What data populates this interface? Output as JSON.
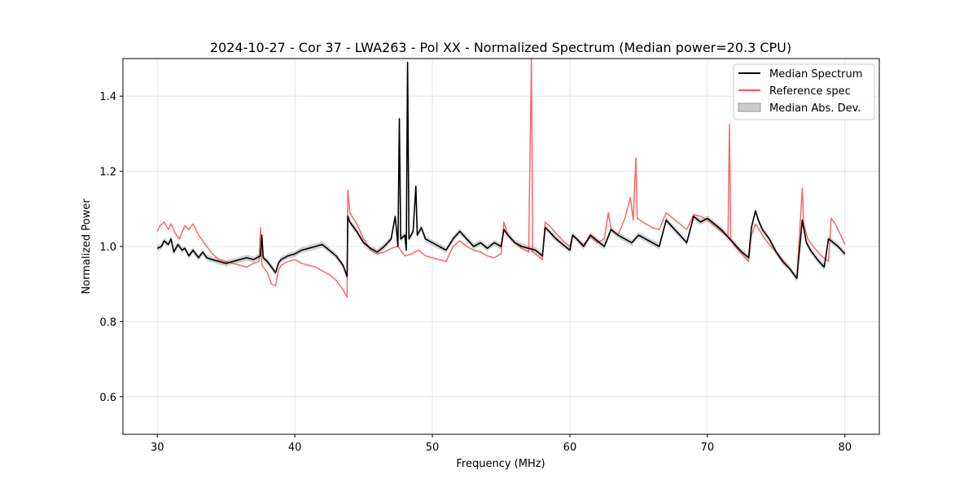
{
  "chart_data": {
    "type": "line",
    "title": "2024-10-27 - Cor 37 - LWA263 - Pol XX - Normalized Spectrum (Median power=20.3 CPU)",
    "xlabel": "Frequency (MHz)",
    "ylabel": "Normalized Power",
    "xlim": [
      27.5,
      82.5
    ],
    "ylim": [
      0.5,
      1.5
    ],
    "xticks": [
      30,
      40,
      50,
      60,
      70,
      80
    ],
    "yticks": [
      0.6,
      0.8,
      1.0,
      1.2,
      1.4
    ],
    "xtick_labels": [
      "30",
      "40",
      "50",
      "60",
      "70",
      "80"
    ],
    "ytick_labels": [
      "0.6",
      "0.8",
      "1.0",
      "1.2",
      "1.4"
    ],
    "grid": true,
    "legend_position": "top-right",
    "series": [
      {
        "name": "Median Spectrum",
        "color": "#000000",
        "points": [
          [
            30.0,
            0.995
          ],
          [
            30.3,
            1.0
          ],
          [
            30.5,
            1.015
          ],
          [
            30.8,
            1.005
          ],
          [
            31.0,
            1.02
          ],
          [
            31.2,
            0.985
          ],
          [
            31.5,
            1.005
          ],
          [
            31.8,
            0.99
          ],
          [
            32.0,
            0.995
          ],
          [
            32.3,
            0.975
          ],
          [
            32.6,
            0.99
          ],
          [
            33.0,
            0.97
          ],
          [
            33.3,
            0.985
          ],
          [
            33.6,
            0.97
          ],
          [
            34.0,
            0.965
          ],
          [
            34.5,
            0.96
          ],
          [
            35.0,
            0.955
          ],
          [
            35.5,
            0.96
          ],
          [
            36.0,
            0.965
          ],
          [
            36.5,
            0.97
          ],
          [
            37.0,
            0.965
          ],
          [
            37.5,
            0.975
          ],
          [
            37.6,
            1.03
          ],
          [
            37.7,
            0.97
          ],
          [
            38.0,
            0.96
          ],
          [
            38.3,
            0.945
          ],
          [
            38.6,
            0.93
          ],
          [
            38.8,
            0.955
          ],
          [
            39.0,
            0.965
          ],
          [
            39.5,
            0.975
          ],
          [
            40.0,
            0.98
          ],
          [
            40.5,
            0.99
          ],
          [
            41.0,
            0.995
          ],
          [
            41.5,
            1.0
          ],
          [
            42.0,
            1.005
          ],
          [
            42.5,
            0.99
          ],
          [
            43.0,
            0.975
          ],
          [
            43.5,
            0.95
          ],
          [
            43.8,
            0.92
          ],
          [
            43.85,
            1.08
          ],
          [
            44.0,
            1.065
          ],
          [
            44.5,
            1.04
          ],
          [
            45.0,
            1.01
          ],
          [
            45.5,
            0.995
          ],
          [
            46.0,
            0.985
          ],
          [
            46.5,
            1.0
          ],
          [
            47.0,
            1.02
          ],
          [
            47.3,
            1.08
          ],
          [
            47.5,
            1.0
          ],
          [
            47.6,
            1.34
          ],
          [
            47.7,
            1.02
          ],
          [
            48.0,
            1.03
          ],
          [
            48.1,
            0.99
          ],
          [
            48.2,
            1.49
          ],
          [
            48.3,
            1.02
          ],
          [
            48.6,
            1.04
          ],
          [
            48.8,
            1.16
          ],
          [
            48.9,
            1.03
          ],
          [
            49.2,
            1.05
          ],
          [
            49.5,
            1.02
          ],
          [
            50.0,
            1.01
          ],
          [
            50.5,
            1.0
          ],
          [
            51.0,
            0.99
          ],
          [
            51.5,
            1.02
          ],
          [
            52.0,
            1.04
          ],
          [
            52.5,
            1.02
          ],
          [
            53.0,
            1.0
          ],
          [
            53.5,
            1.01
          ],
          [
            54.0,
            0.995
          ],
          [
            54.5,
            1.01
          ],
          [
            55.0,
            1.0
          ],
          [
            55.2,
            1.045
          ],
          [
            55.5,
            1.03
          ],
          [
            56.0,
            1.01
          ],
          [
            56.5,
            1.0
          ],
          [
            57.0,
            0.995
          ],
          [
            57.5,
            0.99
          ],
          [
            58.0,
            0.975
          ],
          [
            58.2,
            1.05
          ],
          [
            58.5,
            1.04
          ],
          [
            59.0,
            1.02
          ],
          [
            59.5,
            1.005
          ],
          [
            60.0,
            0.99
          ],
          [
            60.2,
            1.03
          ],
          [
            60.5,
            1.02
          ],
          [
            61.0,
            1.0
          ],
          [
            61.5,
            1.03
          ],
          [
            62.0,
            1.015
          ],
          [
            62.5,
            1.0
          ],
          [
            63.0,
            1.045
          ],
          [
            63.5,
            1.03
          ],
          [
            64.0,
            1.02
          ],
          [
            64.5,
            1.01
          ],
          [
            65.0,
            1.03
          ],
          [
            65.5,
            1.02
          ],
          [
            66.0,
            1.01
          ],
          [
            66.5,
            1.0
          ],
          [
            67.0,
            1.07
          ],
          [
            67.5,
            1.05
          ],
          [
            68.0,
            1.03
          ],
          [
            68.5,
            1.01
          ],
          [
            69.0,
            1.08
          ],
          [
            69.5,
            1.065
          ],
          [
            70.0,
            1.075
          ],
          [
            70.5,
            1.06
          ],
          [
            71.0,
            1.045
          ],
          [
            71.5,
            1.025
          ],
          [
            72.0,
            1.005
          ],
          [
            72.5,
            0.985
          ],
          [
            73.0,
            0.97
          ],
          [
            73.2,
            1.05
          ],
          [
            73.5,
            1.095
          ],
          [
            73.7,
            1.07
          ],
          [
            74.0,
            1.045
          ],
          [
            74.5,
            1.02
          ],
          [
            75.0,
            0.985
          ],
          [
            75.5,
            0.96
          ],
          [
            76.0,
            0.94
          ],
          [
            76.5,
            0.915
          ],
          [
            76.9,
            1.07
          ],
          [
            77.2,
            1.01
          ],
          [
            77.5,
            0.99
          ],
          [
            78.0,
            0.965
          ],
          [
            78.5,
            0.945
          ],
          [
            78.8,
            1.02
          ],
          [
            79.0,
            1.015
          ],
          [
            79.5,
            1.0
          ],
          [
            80.0,
            0.98
          ]
        ]
      },
      {
        "name": "Reference spec",
        "color": "#ff5555",
        "points": [
          [
            30.0,
            1.04
          ],
          [
            30.2,
            1.055
          ],
          [
            30.5,
            1.065
          ],
          [
            30.8,
            1.045
          ],
          [
            31.0,
            1.06
          ],
          [
            31.3,
            1.035
          ],
          [
            31.6,
            1.02
          ],
          [
            32.0,
            1.055
          ],
          [
            32.3,
            1.045
          ],
          [
            32.6,
            1.06
          ],
          [
            33.0,
            1.03
          ],
          [
            33.5,
            1.005
          ],
          [
            34.0,
            0.98
          ],
          [
            34.5,
            0.965
          ],
          [
            35.0,
            0.96
          ],
          [
            35.5,
            0.955
          ],
          [
            36.0,
            0.95
          ],
          [
            36.5,
            0.945
          ],
          [
            37.0,
            0.955
          ],
          [
            37.4,
            0.96
          ],
          [
            37.5,
            1.05
          ],
          [
            37.6,
            0.95
          ],
          [
            38.0,
            0.93
          ],
          [
            38.3,
            0.9
          ],
          [
            38.6,
            0.895
          ],
          [
            38.8,
            0.935
          ],
          [
            39.0,
            0.95
          ],
          [
            39.5,
            0.96
          ],
          [
            40.0,
            0.965
          ],
          [
            40.5,
            0.955
          ],
          [
            41.0,
            0.95
          ],
          [
            41.5,
            0.945
          ],
          [
            42.0,
            0.935
          ],
          [
            42.5,
            0.925
          ],
          [
            43.0,
            0.91
          ],
          [
            43.5,
            0.885
          ],
          [
            43.8,
            0.865
          ],
          [
            43.85,
            1.15
          ],
          [
            44.0,
            1.09
          ],
          [
            44.5,
            1.06
          ],
          [
            45.0,
            1.02
          ],
          [
            45.5,
            0.99
          ],
          [
            46.0,
            0.98
          ],
          [
            46.5,
            0.985
          ],
          [
            47.0,
            0.995
          ],
          [
            47.5,
            1.0
          ],
          [
            47.8,
            0.985
          ],
          [
            48.0,
            0.975
          ],
          [
            48.5,
            0.98
          ],
          [
            49.0,
            0.99
          ],
          [
            49.5,
            0.975
          ],
          [
            50.0,
            0.97
          ],
          [
            50.5,
            0.965
          ],
          [
            51.0,
            0.96
          ],
          [
            51.5,
            1.0
          ],
          [
            52.0,
            1.015
          ],
          [
            52.5,
            1.0
          ],
          [
            53.0,
            0.99
          ],
          [
            53.5,
            0.985
          ],
          [
            54.0,
            0.975
          ],
          [
            54.5,
            0.97
          ],
          [
            55.0,
            0.98
          ],
          [
            55.2,
            1.065
          ],
          [
            55.5,
            1.03
          ],
          [
            56.0,
            1.01
          ],
          [
            56.5,
            0.995
          ],
          [
            57.0,
            0.985
          ],
          [
            57.2,
            1.5
          ],
          [
            57.3,
            0.985
          ],
          [
            57.5,
            0.98
          ],
          [
            58.0,
            0.965
          ],
          [
            58.2,
            1.065
          ],
          [
            58.5,
            1.055
          ],
          [
            59.0,
            1.035
          ],
          [
            59.5,
            1.015
          ],
          [
            60.0,
            1.0
          ],
          [
            60.2,
            1.03
          ],
          [
            60.5,
            1.02
          ],
          [
            61.0,
            1.005
          ],
          [
            61.5,
            1.025
          ],
          [
            62.0,
            1.01
          ],
          [
            62.5,
            1.02
          ],
          [
            62.8,
            1.09
          ],
          [
            63.0,
            1.045
          ],
          [
            63.5,
            1.03
          ],
          [
            64.0,
            1.075
          ],
          [
            64.4,
            1.13
          ],
          [
            64.6,
            1.07
          ],
          [
            64.8,
            1.235
          ],
          [
            64.9,
            1.075
          ],
          [
            65.5,
            1.06
          ],
          [
            66.0,
            1.05
          ],
          [
            66.5,
            1.045
          ],
          [
            67.0,
            1.09
          ],
          [
            67.5,
            1.075
          ],
          [
            68.0,
            1.06
          ],
          [
            68.5,
            1.045
          ],
          [
            69.0,
            1.085
          ],
          [
            69.5,
            1.08
          ],
          [
            70.0,
            1.07
          ],
          [
            70.5,
            1.055
          ],
          [
            71.0,
            1.04
          ],
          [
            71.5,
            1.025
          ],
          [
            71.6,
            1.325
          ],
          [
            71.7,
            1.02
          ],
          [
            72.0,
            1.0
          ],
          [
            72.5,
            0.98
          ],
          [
            73.0,
            0.96
          ],
          [
            73.2,
            1.03
          ],
          [
            73.5,
            1.06
          ],
          [
            74.0,
            1.03
          ],
          [
            74.5,
            1.005
          ],
          [
            75.0,
            0.985
          ],
          [
            75.5,
            0.955
          ],
          [
            76.0,
            0.94
          ],
          [
            76.5,
            0.915
          ],
          [
            76.9,
            1.155
          ],
          [
            77.0,
            1.06
          ],
          [
            77.3,
            1.02
          ],
          [
            77.8,
            0.995
          ],
          [
            78.3,
            0.975
          ],
          [
            78.8,
            0.96
          ],
          [
            79.0,
            1.075
          ],
          [
            79.3,
            1.06
          ],
          [
            79.7,
            1.03
          ],
          [
            80.0,
            1.005
          ]
        ]
      }
    ],
    "mad_band": {
      "name": "Median Abs. Dev.",
      "color": "#cccccc",
      "halfwidth": 0.008
    }
  }
}
